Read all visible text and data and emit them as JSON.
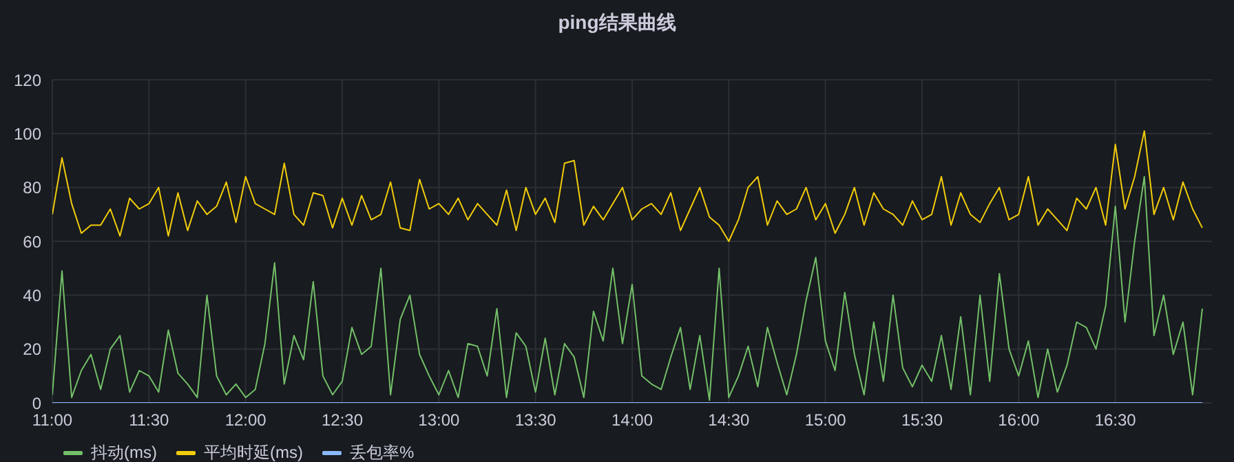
{
  "chart_data": {
    "type": "line",
    "title": "ping结果曲线",
    "x": [
      11,
      11.05,
      11.1,
      11.15,
      11.2,
      11.25,
      11.3,
      11.35,
      11.4,
      11.45,
      11.5,
      11.55,
      11.6,
      11.65,
      11.7,
      11.75,
      11.8,
      11.85,
      11.9,
      11.95,
      12,
      12.05,
      12.1,
      12.15,
      12.2,
      12.25,
      12.3,
      12.35,
      12.4,
      12.45,
      12.5,
      12.55,
      12.6,
      12.65,
      12.7,
      12.75,
      12.8,
      12.85,
      12.9,
      12.95,
      13,
      13.05,
      13.1,
      13.15,
      13.2,
      13.25,
      13.3,
      13.35,
      13.4,
      13.45,
      13.5,
      13.55,
      13.6,
      13.65,
      13.7,
      13.75,
      13.8,
      13.85,
      13.9,
      13.95,
      14,
      14.05,
      14.1,
      14.15,
      14.2,
      14.25,
      14.3,
      14.35,
      14.4,
      14.45,
      14.5,
      14.55,
      14.6,
      14.65,
      14.7,
      14.75,
      14.8,
      14.85,
      14.9,
      14.95,
      15,
      15.05,
      15.1,
      15.15,
      15.2,
      15.25,
      15.3,
      15.35,
      15.4,
      15.45,
      15.5,
      15.55,
      15.6,
      15.65,
      15.7,
      15.75,
      15.8,
      15.85,
      15.9,
      15.95,
      16,
      16.05,
      16.1,
      16.15,
      16.2,
      16.25,
      16.3,
      16.35,
      16.4,
      16.45,
      16.5,
      16.55,
      16.6,
      16.65,
      16.7,
      16.75,
      16.8,
      16.85,
      16.9,
      16.95
    ],
    "series": [
      {
        "name": "抖动(ms)",
        "color": "#73bf69",
        "values": [
          3,
          49,
          2,
          12,
          18,
          5,
          20,
          25,
          4,
          12,
          10,
          4,
          27,
          11,
          7,
          2,
          40,
          10,
          3,
          7,
          2,
          5,
          22,
          52,
          7,
          25,
          16,
          45,
          10,
          3,
          8,
          28,
          18,
          21,
          50,
          3,
          31,
          40,
          18,
          10,
          3,
          12,
          2,
          22,
          21,
          10,
          35,
          2,
          26,
          21,
          4,
          24,
          3,
          22,
          17,
          2,
          34,
          23,
          50,
          22,
          44,
          10,
          7,
          5,
          17,
          28,
          5,
          25,
          1,
          50,
          2,
          10,
          21,
          6,
          28,
          15,
          3,
          18,
          38,
          54,
          23,
          12,
          41,
          18,
          3,
          30,
          8,
          40,
          13,
          6,
          14,
          8,
          25,
          5,
          32,
          3,
          40,
          8,
          48,
          20,
          10,
          23,
          2,
          20,
          4,
          14,
          30,
          28,
          20,
          36,
          73,
          30,
          60,
          84,
          25,
          40,
          18,
          30,
          3,
          35
        ]
      },
      {
        "name": "平均时延(ms)",
        "color": "#f2cc0c",
        "values": [
          70,
          91,
          74,
          63,
          66,
          66,
          72,
          62,
          76,
          72,
          74,
          80,
          62,
          78,
          64,
          75,
          70,
          73,
          82,
          67,
          84,
          74,
          72,
          70,
          89,
          70,
          66,
          78,
          77,
          65,
          76,
          66,
          77,
          68,
          70,
          82,
          65,
          64,
          83,
          72,
          74,
          70,
          76,
          68,
          74,
          70,
          66,
          79,
          64,
          80,
          70,
          76,
          67,
          89,
          90,
          66,
          73,
          68,
          74,
          80,
          68,
          72,
          74,
          70,
          78,
          64,
          72,
          80,
          69,
          66,
          60,
          68,
          80,
          84,
          66,
          75,
          70,
          72,
          80,
          68,
          74,
          63,
          70,
          80,
          66,
          78,
          72,
          70,
          66,
          75,
          68,
          70,
          84,
          66,
          78,
          70,
          67,
          74,
          80,
          68,
          70,
          84,
          66,
          72,
          68,
          64,
          76,
          72,
          80,
          66,
          96,
          72,
          84,
          101,
          70,
          80,
          68,
          82,
          72,
          65
        ]
      },
      {
        "name": "丢包率%",
        "color": "#8ab8ff",
        "values": [
          0,
          0,
          0,
          0,
          0,
          0,
          0,
          0,
          0,
          0,
          0,
          0,
          0,
          0,
          0,
          0,
          0,
          0,
          0,
          0,
          0,
          0,
          0,
          0,
          0,
          0,
          0,
          0,
          0,
          0,
          0,
          0,
          0,
          0,
          0,
          0,
          0,
          0,
          0,
          0,
          0,
          0,
          0,
          0,
          0,
          0,
          0,
          0,
          0,
          0,
          0,
          0,
          0,
          0,
          0,
          0,
          0,
          0,
          0,
          0,
          0,
          0,
          0,
          0,
          0,
          0,
          0,
          0,
          0,
          0,
          0,
          0,
          0,
          0,
          0,
          0,
          0,
          0,
          0,
          0,
          0,
          0,
          0,
          0,
          0,
          0,
          0,
          0,
          0,
          0,
          0,
          0,
          0,
          0,
          0,
          0,
          0,
          0,
          0,
          0,
          0,
          0,
          0,
          0,
          0,
          0,
          0,
          0,
          0,
          0,
          0,
          0,
          0,
          0,
          0,
          0,
          0,
          0,
          0,
          0
        ]
      }
    ],
    "xlim": [
      11,
      17
    ],
    "xticks": [
      {
        "value": 11,
        "label": "11:00"
      },
      {
        "value": 11.5,
        "label": "11:30"
      },
      {
        "value": 12,
        "label": "12:00"
      },
      {
        "value": 12.5,
        "label": "12:30"
      },
      {
        "value": 13,
        "label": "13:00"
      },
      {
        "value": 13.5,
        "label": "13:30"
      },
      {
        "value": 14,
        "label": "14:00"
      },
      {
        "value": 14.5,
        "label": "14:30"
      },
      {
        "value": 15,
        "label": "15:00"
      },
      {
        "value": 15.5,
        "label": "15:30"
      },
      {
        "value": 16,
        "label": "16:00"
      },
      {
        "value": 16.5,
        "label": "16:30"
      }
    ],
    "ylim": [
      0,
      120
    ],
    "yticks": [
      0,
      20,
      40,
      60,
      80,
      100,
      120
    ],
    "grid": true,
    "legend": "bottom left",
    "marker": "none",
    "line_style": "solid"
  }
}
